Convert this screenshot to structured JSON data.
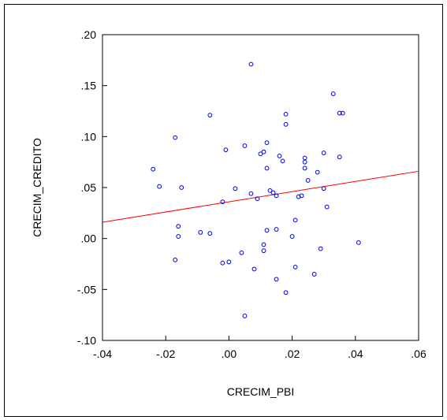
{
  "chart_data": {
    "type": "scatter",
    "title": "",
    "xlabel": "CRECIM_PBI",
    "ylabel": "CRECIM_CREDITO",
    "xlim": [
      -0.04,
      0.06
    ],
    "ylim": [
      -0.1,
      0.2
    ],
    "x_ticks": [
      -0.04,
      -0.02,
      0.0,
      0.02,
      0.04,
      0.06
    ],
    "x_tick_labels": [
      "-.04",
      "-.02",
      ".00",
      ".02",
      ".04",
      ".06"
    ],
    "y_ticks": [
      -0.1,
      -0.05,
      0.0,
      0.05,
      0.1,
      0.15,
      0.2
    ],
    "y_tick_labels": [
      "-.10",
      "-.05",
      ".00",
      ".05",
      ".10",
      ".15",
      ".20"
    ],
    "grid": false,
    "legend": "none",
    "colors": {
      "points": "#0000cc",
      "fit_line": "#ff0000"
    },
    "fit_line": {
      "x": [
        -0.04,
        0.06
      ],
      "y": [
        0.016,
        0.066
      ]
    },
    "points": [
      {
        "x": -0.024,
        "y": 0.068
      },
      {
        "x": -0.022,
        "y": 0.051
      },
      {
        "x": -0.017,
        "y": 0.099
      },
      {
        "x": -0.017,
        "y": -0.021
      },
      {
        "x": -0.016,
        "y": 0.012
      },
      {
        "x": -0.016,
        "y": 0.002
      },
      {
        "x": -0.015,
        "y": 0.05
      },
      {
        "x": -0.009,
        "y": 0.006
      },
      {
        "x": -0.006,
        "y": 0.121
      },
      {
        "x": -0.006,
        "y": 0.005
      },
      {
        "x": -0.002,
        "y": 0.036
      },
      {
        "x": -0.002,
        "y": -0.024
      },
      {
        "x": -0.001,
        "y": 0.087
      },
      {
        "x": 0.0,
        "y": -0.023
      },
      {
        "x": 0.002,
        "y": 0.049
      },
      {
        "x": 0.004,
        "y": -0.014
      },
      {
        "x": 0.005,
        "y": 0.091
      },
      {
        "x": 0.005,
        "y": -0.076
      },
      {
        "x": 0.007,
        "y": 0.171
      },
      {
        "x": 0.007,
        "y": 0.044
      },
      {
        "x": 0.008,
        "y": -0.03
      },
      {
        "x": 0.009,
        "y": 0.039
      },
      {
        "x": 0.01,
        "y": 0.083
      },
      {
        "x": 0.011,
        "y": 0.085
      },
      {
        "x": 0.011,
        "y": -0.006
      },
      {
        "x": 0.011,
        "y": -0.012
      },
      {
        "x": 0.012,
        "y": 0.094
      },
      {
        "x": 0.012,
        "y": 0.069
      },
      {
        "x": 0.012,
        "y": 0.008
      },
      {
        "x": 0.013,
        "y": 0.047
      },
      {
        "x": 0.014,
        "y": 0.045
      },
      {
        "x": 0.015,
        "y": 0.042
      },
      {
        "x": 0.015,
        "y": 0.009
      },
      {
        "x": 0.015,
        "y": -0.04
      },
      {
        "x": 0.016,
        "y": 0.081
      },
      {
        "x": 0.017,
        "y": 0.076
      },
      {
        "x": 0.018,
        "y": 0.112
      },
      {
        "x": 0.018,
        "y": 0.122
      },
      {
        "x": 0.018,
        "y": -0.053
      },
      {
        "x": 0.02,
        "y": 0.002
      },
      {
        "x": 0.021,
        "y": 0.018
      },
      {
        "x": 0.021,
        "y": -0.028
      },
      {
        "x": 0.022,
        "y": 0.041
      },
      {
        "x": 0.023,
        "y": 0.042
      },
      {
        "x": 0.024,
        "y": 0.079
      },
      {
        "x": 0.024,
        "y": 0.069
      },
      {
        "x": 0.024,
        "y": 0.075
      },
      {
        "x": 0.025,
        "y": 0.057
      },
      {
        "x": 0.027,
        "y": -0.035
      },
      {
        "x": 0.028,
        "y": 0.065
      },
      {
        "x": 0.029,
        "y": -0.01
      },
      {
        "x": 0.03,
        "y": 0.084
      },
      {
        "x": 0.03,
        "y": 0.049
      },
      {
        "x": 0.031,
        "y": 0.031
      },
      {
        "x": 0.033,
        "y": 0.142
      },
      {
        "x": 0.035,
        "y": 0.123
      },
      {
        "x": 0.035,
        "y": 0.08
      },
      {
        "x": 0.036,
        "y": 0.123
      },
      {
        "x": 0.041,
        "y": -0.004
      }
    ]
  }
}
